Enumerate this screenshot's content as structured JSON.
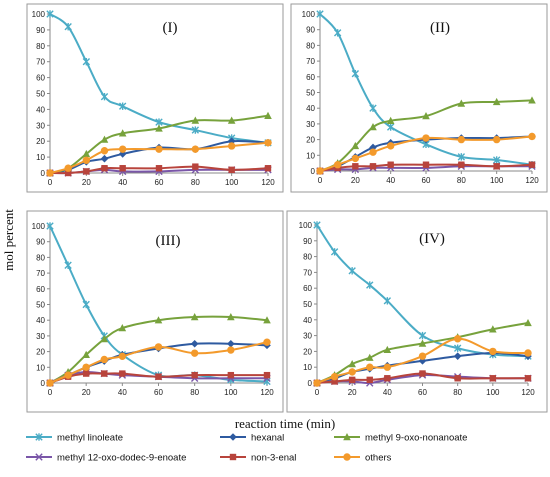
{
  "figure": {
    "ylabel": "mol percent",
    "xlabel": "reaction time (min)"
  },
  "series_styles": [
    {
      "name": "methyl linoleate",
      "color": "#4bacc6",
      "marker": "star"
    },
    {
      "name": "hexanal",
      "color": "#2e5aa0",
      "marker": "diamond"
    },
    {
      "name": "methyl 9-oxo-nonanoate",
      "color": "#77a23c",
      "marker": "triangle"
    },
    {
      "name": "methyl 12-oxo-dodec-9-enoate",
      "color": "#7a56a8",
      "marker": "x"
    },
    {
      "name": "non-3-enal",
      "color": "#b8443c",
      "marker": "square"
    },
    {
      "name": "others",
      "color": "#f39a2c",
      "marker": "circle"
    }
  ],
  "chart_data": [
    {
      "type": "line",
      "title": "(I)",
      "x": [
        0,
        10,
        20,
        30,
        40,
        60,
        80,
        100,
        120
      ],
      "xticks": [
        0,
        20,
        40,
        60,
        80,
        100,
        120
      ],
      "xlim": [
        0,
        120
      ],
      "ylim": [
        0,
        100
      ],
      "yticks": [
        0,
        10,
        20,
        30,
        40,
        50,
        60,
        70,
        80,
        90,
        100
      ],
      "series": [
        {
          "name": "methyl linoleate",
          "values": [
            100,
            92,
            70,
            48,
            42,
            32,
            27,
            22,
            19
          ]
        },
        {
          "name": "hexanal",
          "values": [
            0,
            2,
            7,
            9,
            12,
            16,
            15,
            20,
            19
          ]
        },
        {
          "name": "methyl 9-oxo-nonanoate",
          "values": [
            0,
            3,
            12,
            21,
            25,
            28,
            33,
            33,
            36
          ]
        },
        {
          "name": "methyl 12-oxo-dodec-9-enoate",
          "values": [
            0,
            0,
            1,
            2,
            1,
            1,
            2,
            2,
            2
          ]
        },
        {
          "name": "non-3-enal",
          "values": [
            0,
            0,
            1,
            3,
            3,
            3,
            4,
            2,
            3
          ]
        },
        {
          "name": "others",
          "values": [
            0,
            3,
            8,
            14,
            15,
            15,
            15,
            17,
            19
          ]
        }
      ]
    },
    {
      "type": "line",
      "title": "(II)",
      "x": [
        0,
        10,
        20,
        30,
        40,
        60,
        80,
        100,
        120
      ],
      "xticks": [
        0,
        20,
        40,
        60,
        80,
        100,
        120
      ],
      "xlim": [
        0,
        120
      ],
      "ylim": [
        0,
        100
      ],
      "yticks": [
        0,
        10,
        20,
        30,
        40,
        50,
        60,
        70,
        80,
        90,
        100
      ],
      "series": [
        {
          "name": "methyl linoleate",
          "values": [
            100,
            88,
            62,
            40,
            28,
            17,
            9,
            7,
            4
          ]
        },
        {
          "name": "hexanal",
          "values": [
            0,
            3,
            9,
            15,
            18,
            20,
            21,
            21,
            22
          ]
        },
        {
          "name": "methyl 9-oxo-nonanoate",
          "values": [
            0,
            5,
            16,
            28,
            32,
            35,
            43,
            44,
            45
          ]
        },
        {
          "name": "methyl 12-oxo-dodec-9-enoate",
          "values": [
            0,
            1,
            1,
            2,
            2,
            2,
            3,
            3,
            3
          ]
        },
        {
          "name": "non-3-enal",
          "values": [
            0,
            2,
            3,
            3,
            4,
            4,
            4,
            3,
            4
          ]
        },
        {
          "name": "others",
          "values": [
            0,
            4,
            8,
            12,
            16,
            21,
            20,
            20,
            22
          ]
        }
      ]
    },
    {
      "type": "line",
      "title": "(III)",
      "x": [
        0,
        10,
        20,
        30,
        40,
        60,
        80,
        100,
        120
      ],
      "xticks": [
        0,
        20,
        40,
        60,
        80,
        100,
        120
      ],
      "xlim": [
        0,
        120
      ],
      "ylim": [
        0,
        100
      ],
      "yticks": [
        0,
        10,
        20,
        30,
        40,
        50,
        60,
        70,
        80,
        90,
        100
      ],
      "series": [
        {
          "name": "methyl linoleate",
          "values": [
            100,
            75,
            50,
            30,
            18,
            5,
            5,
            2,
            1
          ]
        },
        {
          "name": "hexanal",
          "values": [
            0,
            5,
            10,
            14,
            18,
            22,
            25,
            25,
            24
          ]
        },
        {
          "name": "methyl 9-oxo-nonanoate",
          "values": [
            0,
            7,
            18,
            28,
            35,
            40,
            42,
            42,
            40
          ]
        },
        {
          "name": "methyl 12-oxo-dodec-9-enoate",
          "values": [
            0,
            5,
            7,
            6,
            5,
            4,
            3,
            3,
            3
          ]
        },
        {
          "name": "non-3-enal",
          "values": [
            0,
            4,
            6,
            6,
            6,
            4,
            5,
            5,
            5
          ]
        },
        {
          "name": "others",
          "values": [
            0,
            5,
            10,
            15,
            17,
            23,
            19,
            21,
            26
          ]
        }
      ]
    },
    {
      "type": "line",
      "title": "(IV)",
      "x": [
        0,
        10,
        20,
        30,
        40,
        60,
        80,
        100,
        120
      ],
      "xticks": [
        0,
        20,
        40,
        60,
        80,
        100,
        120
      ],
      "xlim": [
        0,
        120
      ],
      "ylim": [
        0,
        100
      ],
      "yticks": [
        0,
        10,
        20,
        30,
        40,
        50,
        60,
        70,
        80,
        90,
        100
      ],
      "series": [
        {
          "name": "methyl linoleate",
          "values": [
            100,
            83,
            71,
            62,
            52,
            30,
            22,
            18,
            17
          ]
        },
        {
          "name": "hexanal",
          "values": [
            0,
            3,
            7,
            9,
            11,
            14,
            17,
            19,
            17
          ]
        },
        {
          "name": "methyl 9-oxo-nonanoate",
          "values": [
            0,
            5,
            12,
            16,
            21,
            25,
            29,
            34,
            38
          ]
        },
        {
          "name": "methyl 12-oxo-dodec-9-enoate",
          "values": [
            0,
            1,
            1,
            0,
            2,
            5,
            4,
            3,
            3
          ]
        },
        {
          "name": "non-3-enal",
          "values": [
            0,
            1,
            2,
            2,
            3,
            6,
            3,
            3,
            3
          ]
        },
        {
          "name": "others",
          "values": [
            0,
            4,
            7,
            10,
            10,
            17,
            28,
            20,
            19
          ]
        }
      ]
    }
  ]
}
